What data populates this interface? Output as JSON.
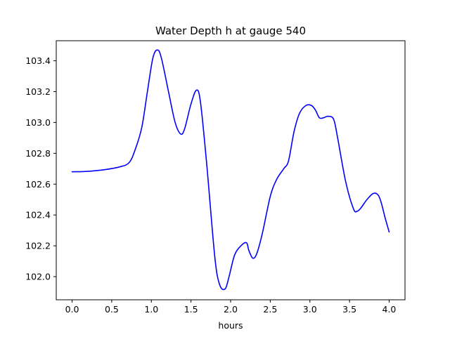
{
  "chart_data": {
    "type": "line",
    "title": "Water Depth h at gauge 540",
    "xlabel": "hours",
    "ylabel": "",
    "xlim": [
      -0.2,
      4.2
    ],
    "ylim": [
      101.85,
      103.53
    ],
    "xticks": [
      0.0,
      0.5,
      1.0,
      1.5,
      2.0,
      2.5,
      3.0,
      3.5,
      4.0
    ],
    "xtick_labels": [
      "0.0",
      "0.5",
      "1.0",
      "1.5",
      "2.0",
      "2.5",
      "3.0",
      "3.5",
      "4.0"
    ],
    "yticks": [
      102.0,
      102.2,
      102.4,
      102.6,
      102.8,
      103.0,
      103.2,
      103.4
    ],
    "ytick_labels": [
      "102.0",
      "102.2",
      "102.4",
      "102.6",
      "102.8",
      "103.0",
      "103.2",
      "103.4"
    ],
    "grid": false,
    "series": [
      {
        "color": "#0000ff",
        "x": [
          0.0,
          0.2,
          0.4,
          0.6,
          0.72,
          0.8,
          0.88,
          0.95,
          1.02,
          1.08,
          1.13,
          1.22,
          1.3,
          1.37,
          1.42,
          1.5,
          1.57,
          1.62,
          1.7,
          1.8,
          1.86,
          1.93,
          1.98,
          2.05,
          2.13,
          2.2,
          2.23,
          2.28,
          2.33,
          2.4,
          2.5,
          2.58,
          2.67,
          2.73,
          2.8,
          2.87,
          2.95,
          3.02,
          3.07,
          3.12,
          3.17,
          3.23,
          3.3,
          3.35,
          3.45,
          3.55,
          3.6,
          3.65,
          3.72,
          3.8,
          3.86,
          3.9,
          3.95,
          4.0
        ],
        "y": [
          102.68,
          102.683,
          102.693,
          102.712,
          102.74,
          102.83,
          102.97,
          103.2,
          103.42,
          103.47,
          103.41,
          103.19,
          103.0,
          102.925,
          102.96,
          103.12,
          103.21,
          103.13,
          102.72,
          102.13,
          101.95,
          101.92,
          102.0,
          102.14,
          102.2,
          102.22,
          102.17,
          102.12,
          102.15,
          102.28,
          102.52,
          102.63,
          102.7,
          102.75,
          102.94,
          103.06,
          103.11,
          103.11,
          103.08,
          103.03,
          103.03,
          103.04,
          103.02,
          102.9,
          102.62,
          102.44,
          102.425,
          102.45,
          102.5,
          102.54,
          102.53,
          102.48,
          102.38,
          102.29
        ]
      }
    ]
  }
}
